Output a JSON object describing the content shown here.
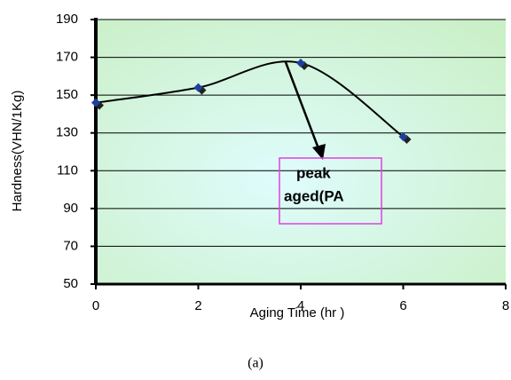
{
  "chart_data": {
    "type": "scatter",
    "x_label": "Aging Time (hr )",
    "y_label": "Hardness(VHN/1Kg)",
    "x": [
      0,
      2,
      4,
      6
    ],
    "values": [
      146,
      154,
      167,
      128
    ],
    "color": "#1f3fa0",
    "line_color": "#000000",
    "xlim": [
      0,
      8
    ],
    "xticks": [
      0,
      2,
      4,
      6,
      8
    ],
    "ylim": [
      50,
      190
    ],
    "yticks": [
      50,
      70,
      90,
      110,
      130,
      150,
      170,
      190
    ],
    "grid": true,
    "annotation": [
      "peak",
      "aged(PA"
    ],
    "caption": "(a)"
  }
}
